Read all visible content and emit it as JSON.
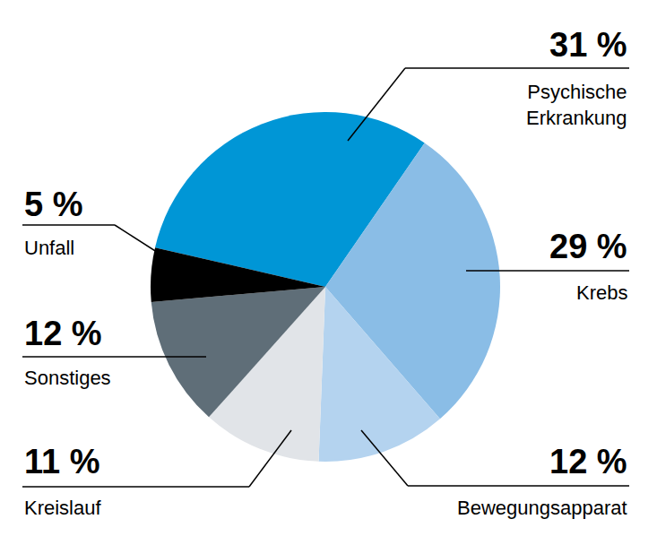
{
  "chart_data": {
    "type": "pie",
    "categories": [
      "Psychische Erkrankung",
      "Krebs",
      "Bewegungsapparat",
      "Kreislauf",
      "Sonstiges",
      "Unfall"
    ],
    "values": [
      31,
      29,
      12,
      11,
      12,
      5
    ],
    "value_labels": [
      "31 %",
      "29 %",
      "12 %",
      "11 %",
      "12 %",
      "5 %"
    ],
    "colors": [
      "#0096d6",
      "#8abde6",
      "#b4d3ef",
      "#e1e4e8",
      "#5f6e78",
      "#000000"
    ],
    "data_labels": true
  }
}
